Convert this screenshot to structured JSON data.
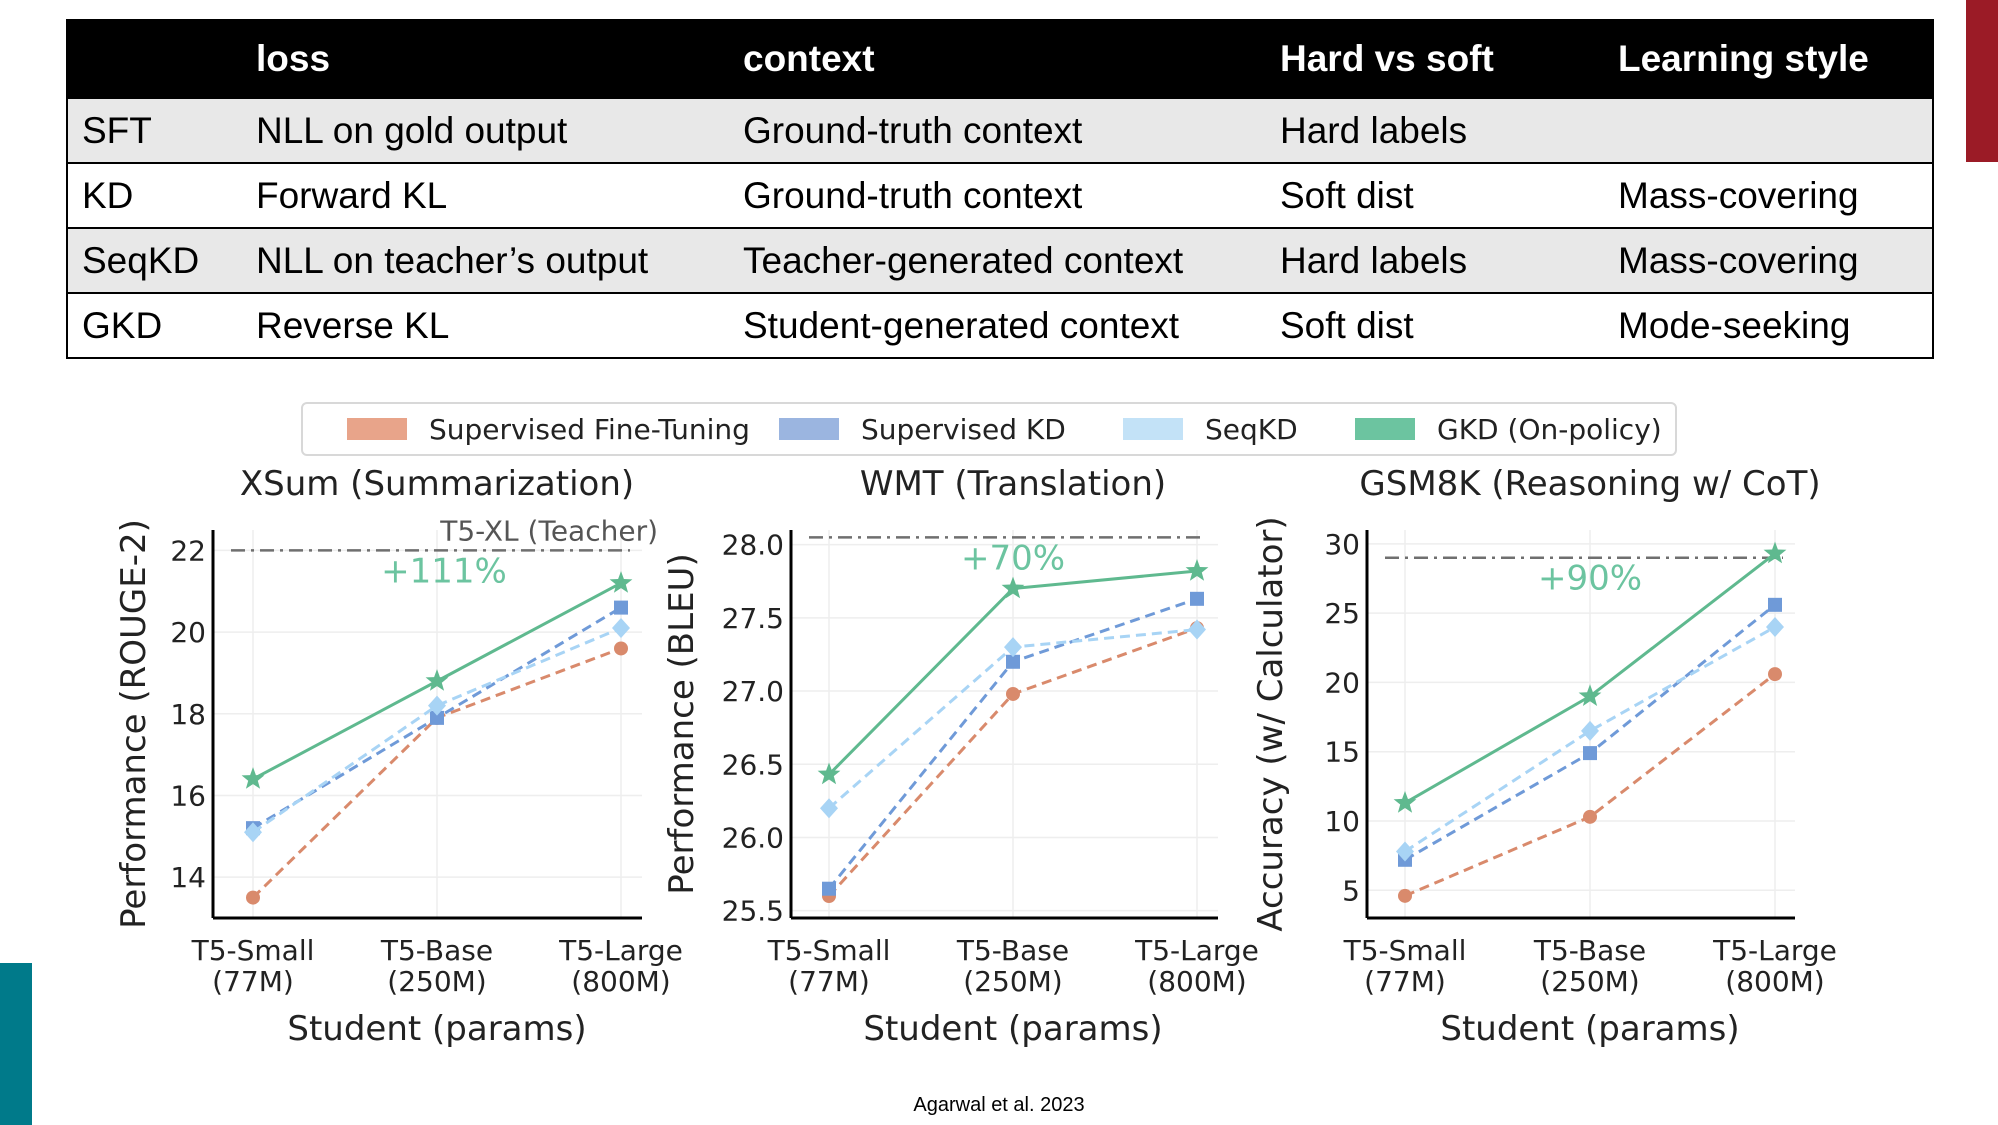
{
  "table": {
    "headers": [
      "",
      "loss",
      "context",
      "Hard vs soft",
      "Learning style"
    ],
    "rows": [
      [
        "SFT",
        "NLL on gold output",
        "Ground-truth context",
        "Hard labels",
        ""
      ],
      [
        "KD",
        "Forward KL",
        "Ground-truth context",
        "Soft dist",
        "Mass-covering"
      ],
      [
        "SeqKD",
        "NLL on teacher’s output",
        "Teacher-generated context",
        "Hard labels",
        "Mass-covering"
      ],
      [
        "GKD",
        "Reverse KL",
        "Student-generated context",
        "Soft dist",
        "Mode-seeking"
      ]
    ]
  },
  "legend": [
    {
      "label": "Supervised Fine-Tuning",
      "color": "#e8a48a"
    },
    {
      "label": "Supervised KD",
      "color": "#9bb5e0"
    },
    {
      "label": "SeqKD",
      "color": "#c3e2f7"
    },
    {
      "label": "GKD (On-policy)",
      "color": "#6cc4a0"
    }
  ],
  "colors": {
    "sft": "#d98a6c",
    "kd": "#6f9ad8",
    "seqkd": "#a8d4f5",
    "gkd": "#5fb98f",
    "teacher_line": "#6f6f6f",
    "improvement": "#6cc4a0"
  },
  "chart_data": [
    {
      "type": "line",
      "title": "XSum (Summarization)",
      "xlabel": "Student (params)",
      "ylabel": "Performance (ROUGE-2)",
      "categories": [
        "T5-Small\n(77M)",
        "T5-Base\n(250M)",
        "T5-Large\n(800M)"
      ],
      "ylim": [
        13.0,
        22.5
      ],
      "yticks": [
        14,
        16,
        18,
        20,
        22
      ],
      "teacher": {
        "label": "T5-XL (Teacher)",
        "value": 22.0
      },
      "improvement": "+111%",
      "series": [
        {
          "name": "Supervised Fine-Tuning",
          "key": "sft",
          "marker": "circle",
          "values": [
            13.5,
            17.9,
            19.6
          ]
        },
        {
          "name": "Supervised KD",
          "key": "kd",
          "marker": "square",
          "values": [
            15.2,
            17.9,
            20.6
          ]
        },
        {
          "name": "SeqKD",
          "key": "seqkd",
          "marker": "diamond",
          "values": [
            15.1,
            18.2,
            20.1
          ]
        },
        {
          "name": "GKD (On-policy)",
          "key": "gkd",
          "marker": "star",
          "values": [
            16.4,
            18.8,
            21.2
          ]
        }
      ]
    },
    {
      "type": "line",
      "title": "WMT (Translation)",
      "xlabel": "Student (params)",
      "ylabel": "Performance (BLEU)",
      "categories": [
        "T5-Small\n(77M)",
        "T5-Base\n(250M)",
        "T5-Large\n(800M)"
      ],
      "ylim": [
        25.45,
        28.1
      ],
      "yticks": [
        25.5,
        26.0,
        26.5,
        27.0,
        27.5,
        28.0
      ],
      "yticklabels": [
        "25.5",
        "26.0",
        "26.5",
        "27.0",
        "27.5",
        "28.0"
      ],
      "teacher": {
        "label": "",
        "value": 28.05
      },
      "improvement": "+70%",
      "series": [
        {
          "name": "Supervised Fine-Tuning",
          "key": "sft",
          "marker": "circle",
          "values": [
            25.6,
            26.98,
            27.43
          ]
        },
        {
          "name": "Supervised KD",
          "key": "kd",
          "marker": "square",
          "values": [
            25.65,
            27.2,
            27.63
          ]
        },
        {
          "name": "SeqKD",
          "key": "seqkd",
          "marker": "diamond",
          "values": [
            26.2,
            27.3,
            27.42
          ]
        },
        {
          "name": "GKD (On-policy)",
          "key": "gkd",
          "marker": "star",
          "values": [
            26.43,
            27.7,
            27.82
          ]
        }
      ]
    },
    {
      "type": "line",
      "title": "GSM8K (Reasoning w/ CoT)",
      "xlabel": "Student (params)",
      "ylabel": "Accuracy (w/ Calculator)",
      "categories": [
        "T5-Small\n(77M)",
        "T5-Base\n(250M)",
        "T5-Large\n(800M)"
      ],
      "ylim": [
        3.0,
        31.0
      ],
      "yticks": [
        5,
        10,
        15,
        20,
        25,
        30
      ],
      "teacher": {
        "label": "",
        "value": 29.0
      },
      "improvement": "+90%",
      "series": [
        {
          "name": "Supervised Fine-Tuning",
          "key": "sft",
          "marker": "circle",
          "values": [
            4.6,
            10.3,
            20.6
          ]
        },
        {
          "name": "Supervised KD",
          "key": "kd",
          "marker": "square",
          "values": [
            7.2,
            14.9,
            25.6
          ]
        },
        {
          "name": "SeqKD",
          "key": "seqkd",
          "marker": "diamond",
          "values": [
            7.8,
            16.5,
            24.0
          ]
        },
        {
          "name": "GKD (On-policy)",
          "key": "gkd",
          "marker": "star",
          "values": [
            11.3,
            19.0,
            29.3
          ]
        }
      ]
    }
  ],
  "citation": "Agarwal et al. 2023"
}
